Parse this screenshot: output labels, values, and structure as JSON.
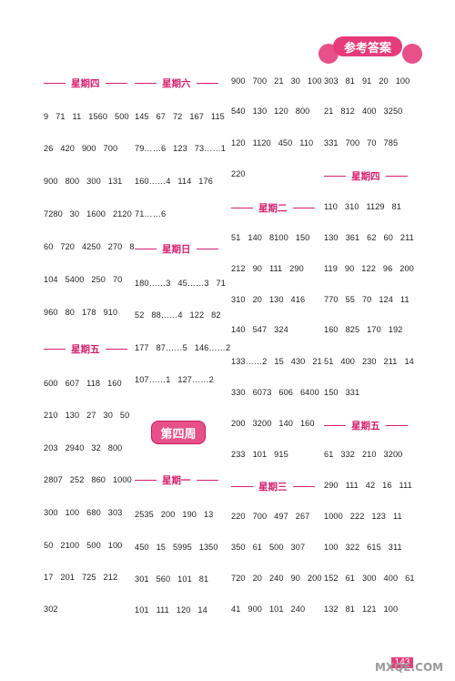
{
  "header": {
    "title": "参考答案"
  },
  "week_label": "第四周",
  "page_number": "143",
  "watermark": "MXQE.COM",
  "headings": {
    "c1_thu": "星期四",
    "c1_fri": "星期五",
    "c2_sat": "星期六",
    "c2_sun": "星期日",
    "c2_mon": "星期一",
    "c3_tue": "星期二",
    "c3_wed": "星期三",
    "c4_thu": "星期四",
    "c4_fri": "星期五"
  },
  "col1": [
    "9   71   11   1560   500",
    "26   420   900   700",
    "900   800   300   131",
    "7280   30   1600   2120",
    "60   720   4250   270   8",
    "104   5400   250   70",
    "960   80   178   910",
    "600   607   118   160",
    "210   130   27   30   50",
    "203   2940   32   800",
    "2807   252   860   1000",
    "300   100   680   303",
    "50   2100   500   100",
    "17   201   725   212",
    "302"
  ],
  "col2": [
    "145   67   72   167   115",
    "79……6   123   73……1",
    "160……4   114   176",
    "71……6",
    "180……3   45……3   71",
    "52   88……4   122   82",
    "177   87……5   146……2",
    "107……1   127……2",
    "2535   200   190   13",
    "450   15   5995   1350",
    "301   560   101   81",
    "101   111   120   14"
  ],
  "col3": [
    "900   700   21   30   100",
    "540   130   120   800",
    "120   1120   450   110",
    "220",
    "51   140   8100   150",
    "212   90   111   290",
    "310   20   130   416",
    "140   547   324",
    "133……2   15   430   21",
    "330   6073   606   6400",
    "200   3200   140   160",
    "233   101   915",
    "220   700   497   267",
    "350   61   500   307",
    "720   20   240   90   200",
    "41   900   101   240"
  ],
  "col4": [
    "303   81   91   20   100",
    "21   812   400   3250",
    "331   700   70   785",
    "110   310   1129   81",
    "130   361   62   60   211",
    "119   90   122   96   200",
    "770   55   70   124   11",
    "160   825   170   192",
    "51   400   230   211   14",
    "150   331",
    "61   332   210   3200",
    "290   111   42   16   111",
    "1000   222   123   11",
    "100   322   615   311",
    "152   61   300   400   61",
    "132   81   121   100"
  ]
}
